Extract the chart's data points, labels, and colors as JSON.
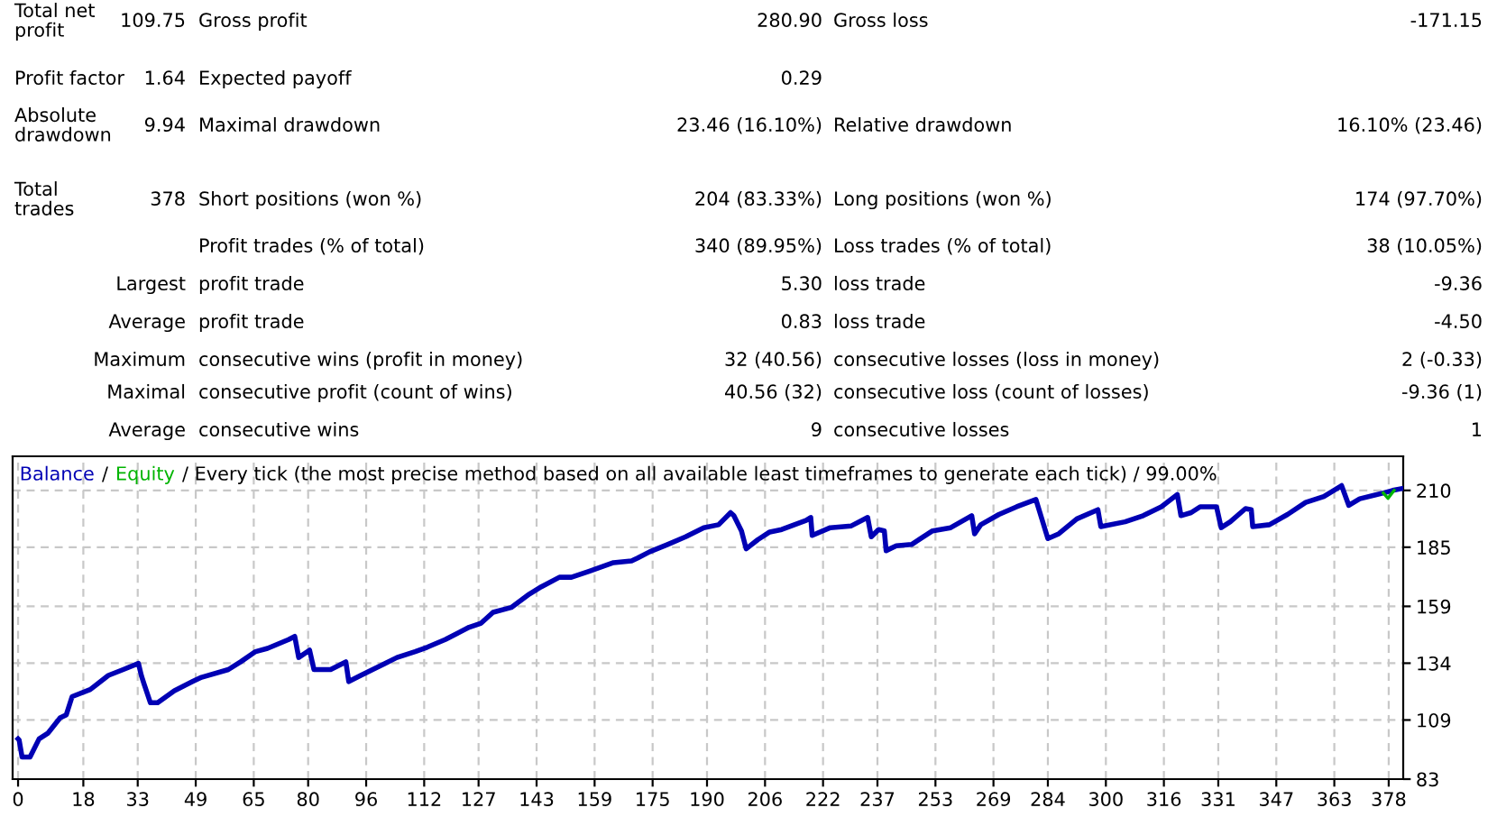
{
  "chart_data": {
    "type": "line",
    "title": "/ Every tick (the most precise method based on all available least timeframes to generate each tick) / 99.00%",
    "annotations": [
      "Total net\nprofit",
      "109.75",
      "Gross profit",
      "280.90",
      "Gross loss",
      "-171.15",
      "Profit factor",
      "1.64",
      "Expected payoff",
      "0.29",
      "Absolute\ndrawdown",
      "9.94",
      "Maximal drawdown",
      "23.46 (16.10%)",
      "Relative drawdown",
      "16.10% (23.46)",
      "Total\ntrades",
      "378",
      "Short positions (won %)",
      "204 (83.33%)",
      "Long positions (won %)",
      "174 (97.70%)",
      "Profit trades (% of total)",
      "340 (89.95%)",
      "Loss trades (% of total)",
      "38 (10.05%)",
      "Largest",
      "profit trade",
      "5.30",
      "loss trade",
      "-9.36",
      "Average",
      "profit trade",
      "0.83",
      "loss trade",
      "-4.50",
      "Maximum",
      "consecutive wins (profit in money)",
      "32 (40.56)",
      "consecutive losses (loss in money)",
      "2 (-0.33)",
      "Maximal",
      "consecutive profit (count of wins)",
      "40.56 (32)",
      "consecutive loss (count of losses)",
      "-9.36 (1)",
      "Average",
      "consecutive wins",
      "9",
      "consecutive losses",
      "1",
      "/"
    ],
    "xlim": [
      -1.5,
      382
    ],
    "xticks": [
      0,
      18,
      33,
      49,
      65,
      80,
      96,
      112,
      127,
      143,
      159,
      175,
      190,
      206,
      222,
      237,
      253,
      269,
      284,
      300,
      316,
      331,
      347,
      363,
      378
    ],
    "ylim": [
      83,
      225
    ],
    "yticks": [
      83,
      109,
      134,
      159,
      185,
      210
    ],
    "grid": true,
    "legend": "top left",
    "series": [
      {
        "name": "Equity",
        "color": "#00b400",
        "x": [
          376.5,
          377.8,
          379.5
        ],
        "values": [
          208.9,
          206.5,
          210.0
        ]
      },
      {
        "name": "Balance",
        "color": "#0000b4",
        "x": [
          0,
          0.3,
          1.1,
          3.3,
          5.8,
          8.3,
          11.6,
          13.3,
          14.9,
          19.9,
          24.9,
          29,
          33.2,
          34,
          34.8,
          36.5,
          38.5,
          43.1,
          48.1,
          50.6,
          58,
          61.4,
          65.5,
          68.8,
          74.6,
          76.3,
          77.4,
          80.4,
          81.6,
          86.2,
          90.4,
          91.2,
          94.5,
          101.2,
          104.5,
          109.5,
          112.8,
          117.8,
          124.4,
          127.7,
          131,
          136,
          141,
          144.3,
          149.3,
          152.6,
          157.6,
          164.2,
          169.2,
          170.9,
          174.2,
          179.1,
          184.1,
          189.1,
          193.2,
          196.5,
          197.4,
          199.5,
          200.8,
          204,
          207.3,
          210.6,
          217.3,
          218.6,
          219,
          224,
          229.8,
          234.3,
          235.3,
          237.3,
          238.9,
          239.4,
          242.2,
          246.4,
          252.2,
          257.2,
          263,
          263.8,
          265.5,
          270.5,
          275.4,
          280.7,
          284,
          287,
          292,
          297.8,
          298.6,
          305.3,
          310.3,
          315.3,
          319.7,
          320.7,
          323.5,
          326,
          330.5,
          331.8,
          334.3,
          338.5,
          340.1,
          340.5,
          345.1,
          350.1,
          355.1,
          360.1,
          365,
          367,
          370,
          376.6,
          379.1,
          381.6
        ],
        "values": [
          100.7,
          100.2,
          92.7,
          92.7,
          100.7,
          103.3,
          110,
          111.3,
          119.3,
          122.4,
          128.6,
          131.2,
          133.9,
          128.6,
          124.6,
          116.6,
          116.6,
          121.9,
          125.9,
          127.8,
          131.2,
          134.6,
          139.1,
          140.5,
          144.4,
          145.8,
          136.5,
          139.7,
          131.2,
          131.2,
          134.6,
          125.9,
          128.6,
          133.9,
          136.5,
          139.1,
          141,
          144.4,
          149.8,
          151.6,
          156.4,
          158.5,
          164.4,
          167.6,
          171.8,
          171.8,
          174.5,
          178.2,
          179,
          180.3,
          183,
          186.2,
          189.6,
          193.6,
          194.9,
          200.2,
          198.9,
          192.2,
          184.3,
          188.3,
          191.7,
          192.8,
          196.8,
          198.1,
          190.2,
          193.6,
          194.4,
          198.1,
          189.6,
          192.8,
          192.2,
          183.5,
          185.6,
          186.2,
          192.2,
          193.6,
          198.9,
          190.9,
          194.9,
          199.4,
          202.8,
          206,
          188.8,
          190.9,
          197.5,
          201.5,
          194.1,
          196.2,
          198.9,
          202.8,
          208.2,
          198.9,
          200.2,
          202.8,
          202.8,
          193.6,
          196.2,
          202,
          201.5,
          194.1,
          194.9,
          199.4,
          204.7,
          207.3,
          212.1,
          203.4,
          206.3,
          208.9,
          210,
          210.8
        ]
      }
    ]
  }
}
